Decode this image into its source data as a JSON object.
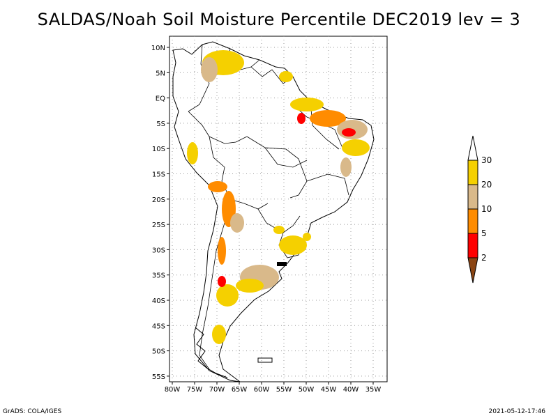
{
  "title": "SALDAS/Noah Soil Moisture Percentile DEC2019 lev = 3",
  "footer": {
    "left": "GrADS: COLA/IGES",
    "right": "2021-05-12-17:46"
  },
  "axes": {
    "lon_labels": [
      "80W",
      "75W",
      "70W",
      "65W",
      "60W",
      "55W",
      "50W",
      "45W",
      "40W",
      "35W"
    ],
    "lat_labels": [
      "10N",
      "5N",
      "EQ",
      "5S",
      "10S",
      "15S",
      "20S",
      "25S",
      "30S",
      "35S",
      "40S",
      "45S",
      "50S",
      "55S"
    ]
  },
  "legend": {
    "labels": [
      "30",
      "20",
      "10",
      "5",
      "2"
    ],
    "colors": {
      "above30": "#ffffff",
      "20-30": "#f5d000",
      "10-20": "#d9b98a",
      "5-10": "#ff8c00",
      "2-5": "#ff0000",
      "below2": "#8b4513"
    }
  },
  "map": {
    "extent_lon": [
      -81,
      -32
    ],
    "extent_lat": [
      -56,
      12
    ]
  }
}
